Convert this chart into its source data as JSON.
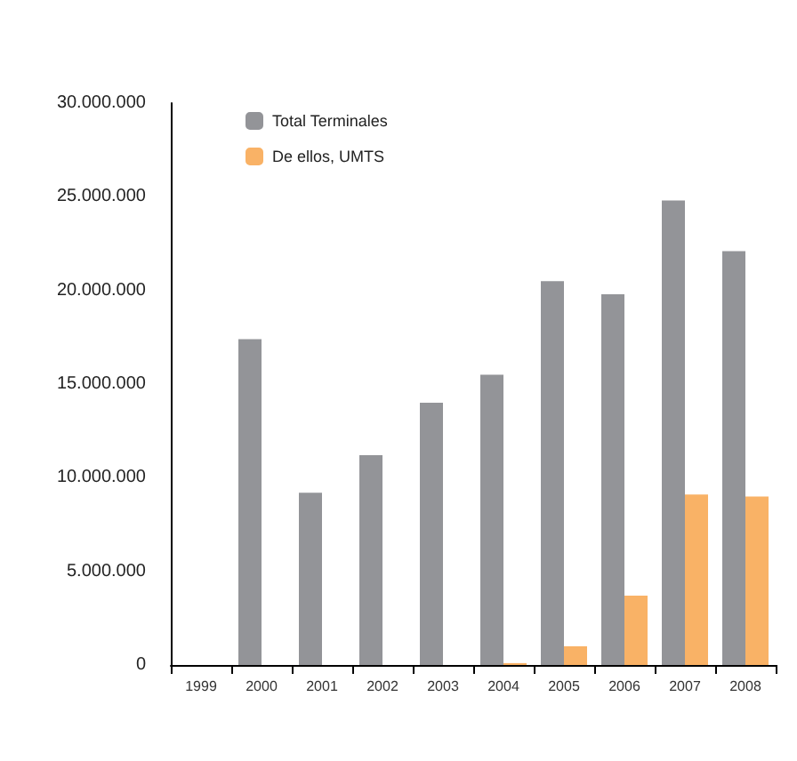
{
  "chart_data": {
    "type": "bar",
    "categories": [
      "1999",
      "2000",
      "2001",
      "2002",
      "2003",
      "2004",
      "2005",
      "2006",
      "2007",
      "2008"
    ],
    "series": [
      {
        "name": "Total Terminales",
        "color": "#939498",
        "values": [
          null,
          17400000,
          9200000,
          11200000,
          14000000,
          15500000,
          20500000,
          19800000,
          24800000,
          22100000
        ]
      },
      {
        "name": "De ellos, UMTS",
        "color": "#f9b266",
        "values": [
          null,
          null,
          null,
          null,
          null,
          100000,
          1000000,
          3700000,
          9100000,
          9000000
        ]
      }
    ],
    "ylim": [
      0,
      30000000
    ],
    "yticks": [
      {
        "value": 0,
        "label": "0"
      },
      {
        "value": 5000000,
        "label": "5.000.000"
      },
      {
        "value": 10000000,
        "label": "10.000.000"
      },
      {
        "value": 15000000,
        "label": "15.000.000"
      },
      {
        "value": 20000000,
        "label": "20.000.000"
      },
      {
        "value": 25000000,
        "label": "25.000.000"
      },
      {
        "value": 30000000,
        "label": "30.000.000"
      }
    ],
    "grid": false,
    "legend": "top left"
  }
}
